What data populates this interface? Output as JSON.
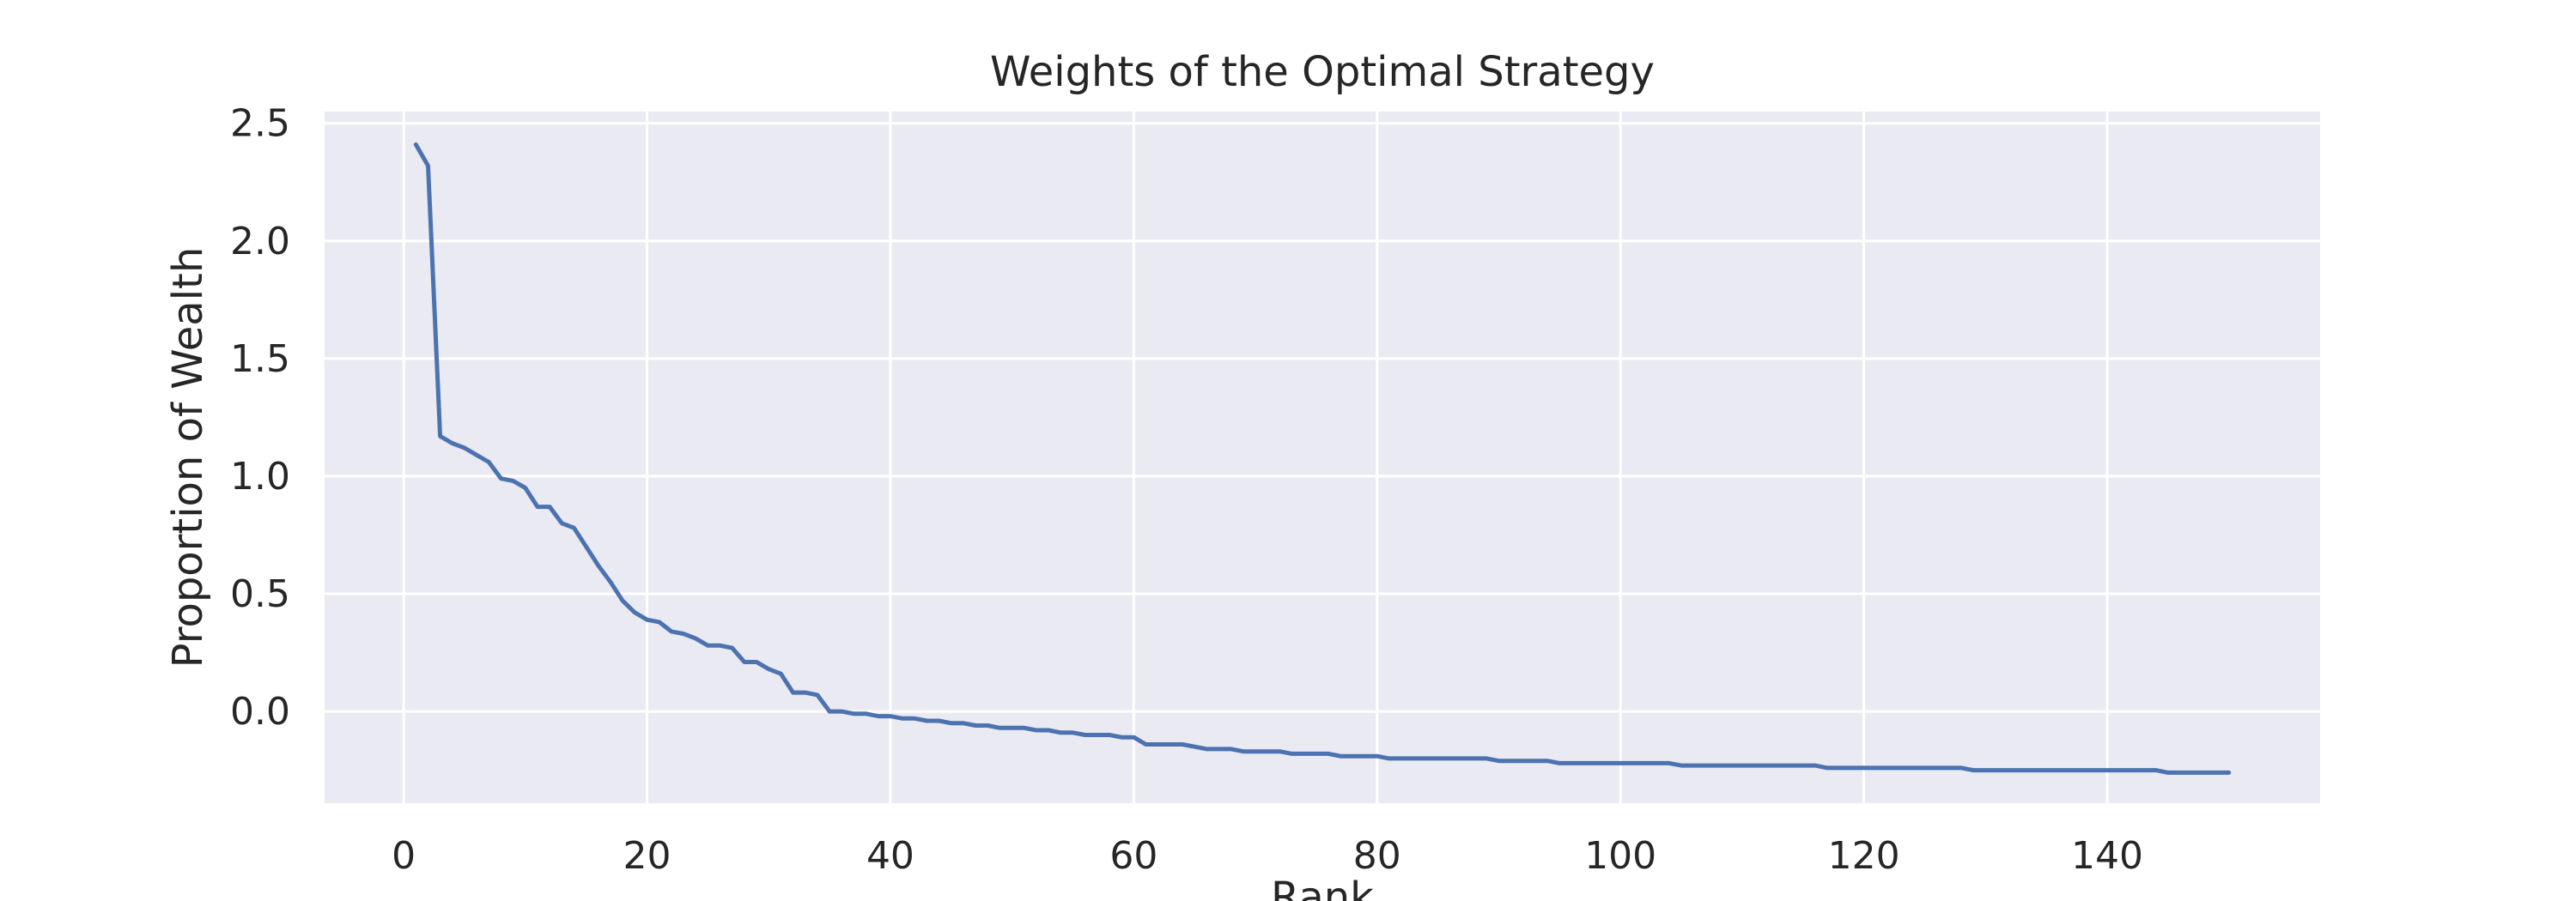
{
  "chart_data": {
    "type": "line",
    "title": "Weights of the Optimal Strategy",
    "xlabel": "Rank",
    "ylabel": "Proportion of Wealth",
    "xlim": [
      -6.5,
      157.5
    ],
    "ylim": [
      -0.39,
      2.55
    ],
    "x_ticks": [
      0,
      20,
      40,
      60,
      80,
      100,
      120,
      140
    ],
    "y_ticks": [
      0.0,
      0.5,
      1.0,
      1.5,
      2.0,
      2.5
    ],
    "x_tick_labels": [
      "0",
      "20",
      "40",
      "60",
      "80",
      "100",
      "120",
      "140"
    ],
    "y_tick_labels": [
      "0.0",
      "0.5",
      "1.0",
      "1.5",
      "2.0",
      "2.5"
    ],
    "grid": true,
    "background": "#eaeaf2",
    "grid_color": "#ffffff",
    "line_color": "#4c72b0",
    "series": [
      {
        "x": [
          1,
          2,
          3,
          4,
          5,
          6,
          7,
          8,
          9,
          10,
          11,
          12,
          13,
          14,
          15,
          16,
          17,
          18,
          19,
          20,
          21,
          22,
          23,
          24,
          25,
          26,
          27,
          28,
          29,
          30,
          31,
          32,
          33,
          34,
          35,
          36,
          37,
          38,
          39,
          40,
          41,
          42,
          43,
          44,
          45,
          46,
          47,
          48,
          49,
          50,
          51,
          52,
          53,
          54,
          55,
          56,
          57,
          58,
          59,
          60,
          61,
          62,
          63,
          64,
          65,
          66,
          67,
          68,
          69,
          70,
          71,
          72,
          73,
          74,
          75,
          76,
          77,
          78,
          79,
          80,
          81,
          82,
          83,
          84,
          85,
          86,
          87,
          88,
          89,
          90,
          91,
          92,
          93,
          94,
          95,
          96,
          97,
          98,
          99,
          100,
          101,
          102,
          103,
          104,
          105,
          106,
          107,
          108,
          109,
          110,
          111,
          112,
          113,
          114,
          115,
          116,
          117,
          118,
          119,
          120,
          121,
          122,
          123,
          124,
          125,
          126,
          127,
          128,
          129,
          130,
          131,
          132,
          133,
          134,
          135,
          136,
          137,
          138,
          139,
          140,
          141,
          142,
          143,
          144,
          145,
          146,
          147,
          148,
          149,
          150
        ],
        "values": [
          2.41,
          2.32,
          1.17,
          1.14,
          1.12,
          1.09,
          1.06,
          0.99,
          0.98,
          0.95,
          0.87,
          0.87,
          0.8,
          0.78,
          0.7,
          0.62,
          0.55,
          0.47,
          0.42,
          0.39,
          0.38,
          0.34,
          0.33,
          0.31,
          0.28,
          0.28,
          0.27,
          0.21,
          0.21,
          0.18,
          0.16,
          0.08,
          0.08,
          0.07,
          0.0,
          0.0,
          -0.01,
          -0.01,
          -0.02,
          -0.02,
          -0.03,
          -0.03,
          -0.04,
          -0.04,
          -0.05,
          -0.05,
          -0.06,
          -0.06,
          -0.07,
          -0.07,
          -0.07,
          -0.08,
          -0.08,
          -0.09,
          -0.09,
          -0.1,
          -0.1,
          -0.1,
          -0.11,
          -0.11,
          -0.14,
          -0.14,
          -0.14,
          -0.14,
          -0.15,
          -0.16,
          -0.16,
          -0.16,
          -0.17,
          -0.17,
          -0.17,
          -0.17,
          -0.18,
          -0.18,
          -0.18,
          -0.18,
          -0.19,
          -0.19,
          -0.19,
          -0.19,
          -0.2,
          -0.2,
          -0.2,
          -0.2,
          -0.2,
          -0.2,
          -0.2,
          -0.2,
          -0.2,
          -0.21,
          -0.21,
          -0.21,
          -0.21,
          -0.21,
          -0.22,
          -0.22,
          -0.22,
          -0.22,
          -0.22,
          -0.22,
          -0.22,
          -0.22,
          -0.22,
          -0.22,
          -0.23,
          -0.23,
          -0.23,
          -0.23,
          -0.23,
          -0.23,
          -0.23,
          -0.23,
          -0.23,
          -0.23,
          -0.23,
          -0.23,
          -0.24,
          -0.24,
          -0.24,
          -0.24,
          -0.24,
          -0.24,
          -0.24,
          -0.24,
          -0.24,
          -0.24,
          -0.24,
          -0.24,
          -0.25,
          -0.25,
          -0.25,
          -0.25,
          -0.25,
          -0.25,
          -0.25,
          -0.25,
          -0.25,
          -0.25,
          -0.25,
          -0.25,
          -0.25,
          -0.25,
          -0.25,
          -0.25,
          -0.26,
          -0.26,
          -0.26,
          -0.26,
          -0.26,
          -0.26
        ]
      }
    ]
  }
}
